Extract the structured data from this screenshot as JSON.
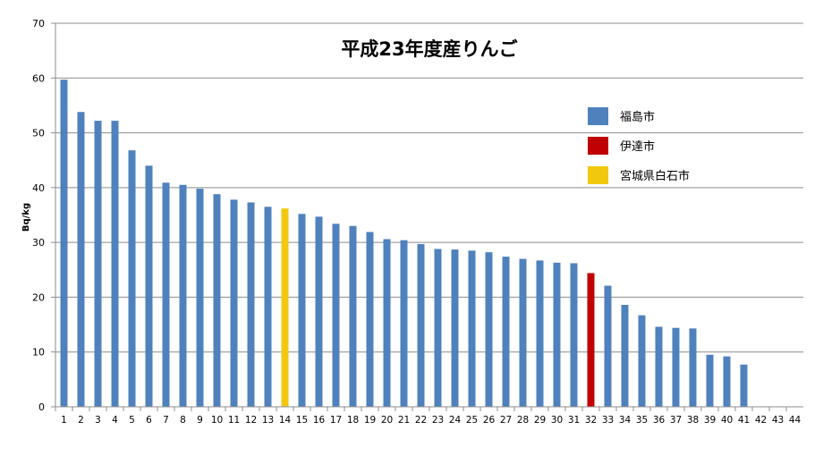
{
  "chart_data": {
    "type": "bar",
    "title": "平成23年度産りんご",
    "xlabel": "",
    "ylabel": "Bq/kg",
    "ylim": [
      0,
      70
    ],
    "yticks": [
      0,
      10,
      20,
      30,
      40,
      50,
      60,
      70
    ],
    "grid": true,
    "legend_position": "right",
    "categories": [
      "1",
      "2",
      "3",
      "4",
      "5",
      "6",
      "7",
      "8",
      "9",
      "10",
      "11",
      "12",
      "13",
      "14",
      "15",
      "16",
      "17",
      "18",
      "19",
      "20",
      "21",
      "22",
      "23",
      "24",
      "25",
      "26",
      "27",
      "28",
      "29",
      "30",
      "31",
      "32",
      "33",
      "34",
      "35",
      "36",
      "37",
      "38",
      "39",
      "40",
      "41",
      "42",
      "43",
      "44"
    ],
    "values": [
      59.7,
      53.8,
      52.2,
      52.2,
      46.8,
      44.0,
      40.9,
      40.5,
      39.8,
      38.8,
      37.8,
      37.3,
      36.5,
      36.2,
      35.2,
      34.7,
      33.4,
      33.0,
      31.9,
      30.6,
      30.4,
      29.7,
      28.8,
      28.7,
      28.5,
      28.2,
      27.4,
      27.0,
      26.7,
      26.3,
      26.2,
      24.4,
      22.1,
      18.6,
      16.7,
      14.6,
      14.4,
      14.3,
      9.5,
      9.2,
      7.7,
      null,
      null,
      null
    ],
    "series": [
      {
        "name": "福島市",
        "color": "#4f81bd"
      },
      {
        "name": "伊達市",
        "color": "#c00000"
      },
      {
        "name": "宮城県白石市",
        "color": "#f2c80f"
      }
    ],
    "point_series": {
      "14": 2,
      "32": 1
    }
  }
}
